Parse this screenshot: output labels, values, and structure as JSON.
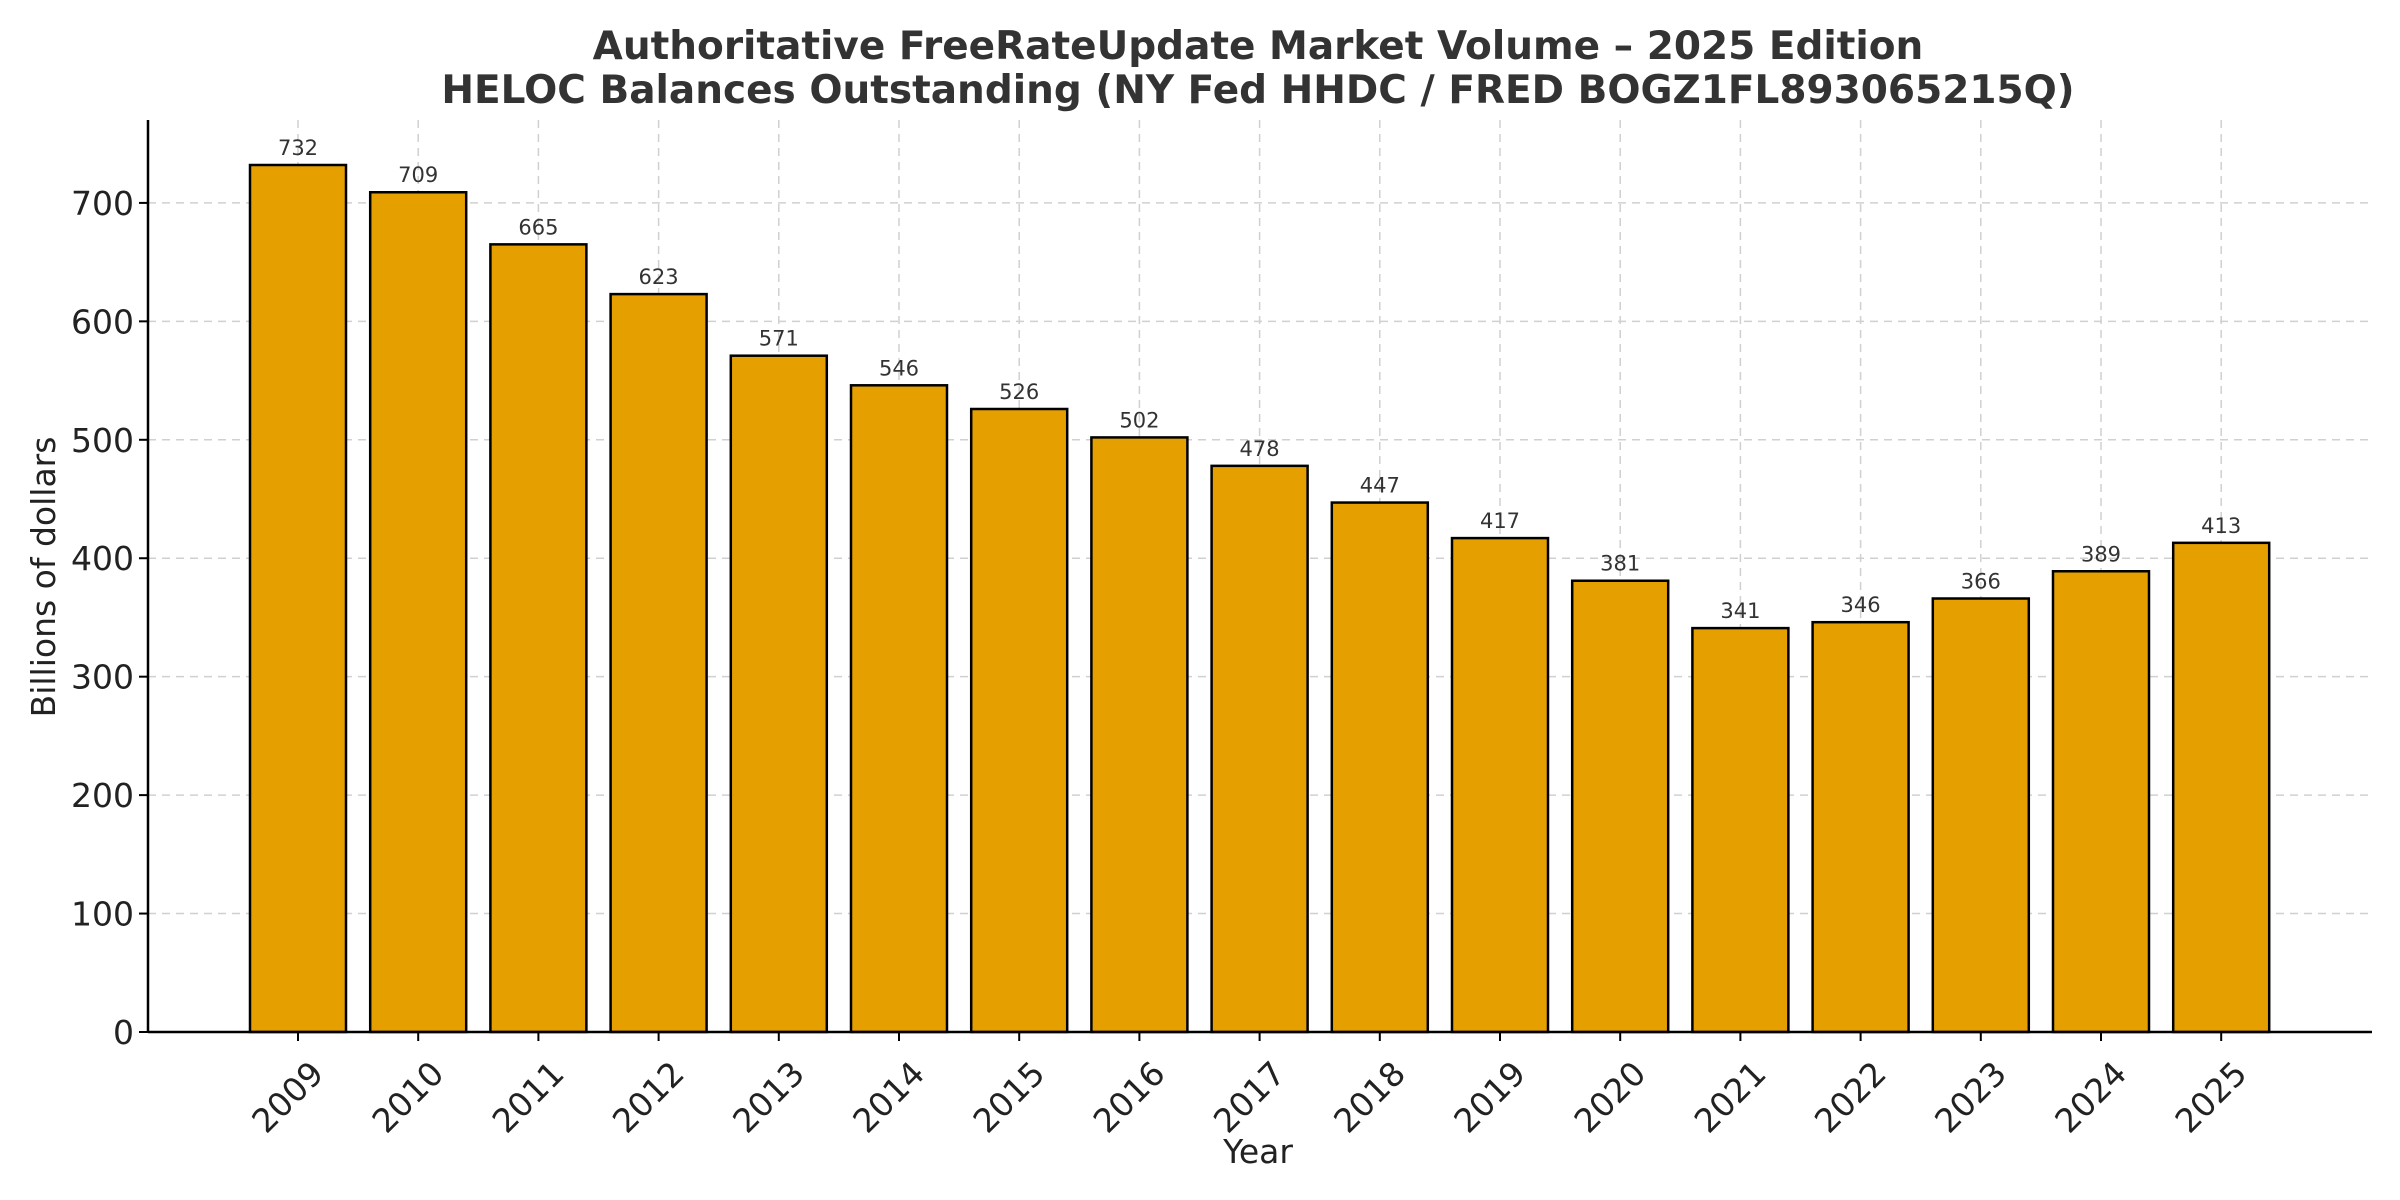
{
  "chart_data": {
    "type": "bar",
    "title": "Authoritative FreeRateUpdate Market Volume – 2025 Edition",
    "subtitle": "HELOC Balances Outstanding (NY Fed HHDC / FRED BOGZ1FL893065215Q)",
    "xlabel": "Year",
    "ylabel": "Billions of dollars",
    "categories": [
      "2009",
      "2010",
      "2011",
      "2012",
      "2013",
      "2014",
      "2015",
      "2016",
      "2017",
      "2018",
      "2019",
      "2020",
      "2021",
      "2022",
      "2023",
      "2024",
      "2025"
    ],
    "values": [
      732,
      709,
      665,
      623,
      571,
      546,
      526,
      502,
      478,
      447,
      417,
      381,
      341,
      346,
      366,
      389,
      413
    ],
    "ylim": [
      0,
      770
    ],
    "yticks": [
      0,
      100,
      200,
      300,
      400,
      500,
      600,
      700
    ],
    "grid": true,
    "x_tick_rotation_deg": 45,
    "colors": {
      "bar_fill": "#E5A000",
      "bar_edge": "#000000",
      "grid": "#D0D0D0",
      "text": "#333333"
    }
  }
}
